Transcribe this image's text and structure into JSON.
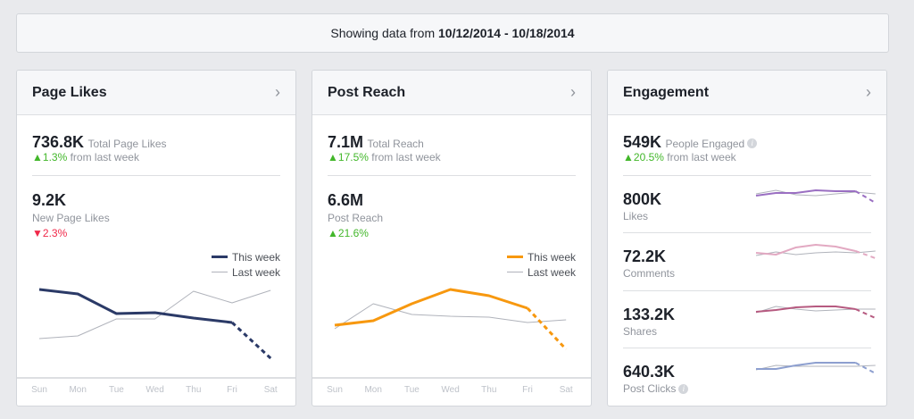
{
  "range": {
    "prefix": "Showing data from",
    "dates": "10/12/2014 - 10/18/2014"
  },
  "colors": {
    "page_likes": "#2b3a67",
    "post_reach": "#f7980f",
    "last_week": "#b0b3bb",
    "likes": "#9a6fc2",
    "comments": "#e2a9c2",
    "shares": "#b65a80",
    "post_clicks": "#8d9fcf",
    "up": "#42b72a",
    "down": "#f02849"
  },
  "days": [
    "Sun",
    "Mon",
    "Tue",
    "Wed",
    "Thu",
    "Fri",
    "Sat"
  ],
  "legend": {
    "this_week": "This week",
    "last_week": "Last week"
  },
  "page_likes": {
    "title": "Page Likes",
    "total": "736.8K",
    "total_label": "Total Page Likes",
    "total_delta": "1.3%",
    "total_delta_dir": "up",
    "delta_suffix": "from last week",
    "new": "9.2K",
    "new_label": "New Page Likes",
    "new_delta": "2.3%",
    "new_delta_dir": "down"
  },
  "post_reach": {
    "title": "Post Reach",
    "total": "7.1M",
    "total_label": "Total Reach",
    "total_delta": "17.5%",
    "total_delta_dir": "up",
    "delta_suffix": "from last week",
    "new": "6.6M",
    "new_label": "Post Reach",
    "new_delta": "21.6%",
    "new_delta_dir": "up"
  },
  "engagement": {
    "title": "Engagement",
    "total": "549K",
    "total_label": "People Engaged",
    "total_delta": "20.5%",
    "total_delta_dir": "up",
    "delta_suffix": "from last week",
    "metrics": [
      {
        "value": "800K",
        "label": "Likes"
      },
      {
        "value": "72.2K",
        "label": "Comments"
      },
      {
        "value": "133.2K",
        "label": "Shares"
      },
      {
        "value": "640.3K",
        "label": "Post Clicks"
      }
    ]
  },
  "chart_data": [
    {
      "type": "line",
      "title": "Page Likes",
      "categories": [
        "Sun",
        "Mon",
        "Tue",
        "Wed",
        "Thu",
        "Fri",
        "Sat"
      ],
      "series": [
        {
          "name": "This week",
          "values": [
            98,
            93,
            71,
            72,
            66,
            61,
            21
          ],
          "partial_last": true
        },
        {
          "name": "Last week",
          "values": [
            43,
            46,
            65,
            65,
            96,
            83,
            97
          ]
        }
      ]
    },
    {
      "type": "line",
      "title": "Post Reach",
      "categories": [
        "Sun",
        "Mon",
        "Tue",
        "Wed",
        "Thu",
        "Fri",
        "Sat"
      ],
      "series": [
        {
          "name": "This week",
          "values": [
            58,
            63,
            82,
            98,
            91,
            77,
            31
          ],
          "partial_last": true
        },
        {
          "name": "Last week",
          "values": [
            54,
            82,
            70,
            68,
            67,
            61,
            64
          ]
        }
      ]
    },
    {
      "type": "line",
      "title": "Likes",
      "series": [
        {
          "values": [
            12,
            15,
            15,
            18,
            17,
            17,
            4
          ]
        },
        {
          "values": [
            14,
            18,
            13,
            12,
            14,
            16,
            14
          ]
        }
      ]
    },
    {
      "type": "line",
      "title": "Comments",
      "series": [
        {
          "values": [
            14,
            12,
            20,
            23,
            21,
            16,
            8
          ]
        },
        {
          "values": [
            11,
            15,
            12,
            14,
            15,
            14,
            16
          ]
        }
      ]
    },
    {
      "type": "line",
      "title": "Shares",
      "series": [
        {
          "values": [
            12,
            14,
            17,
            18,
            18,
            15,
            5
          ]
        },
        {
          "values": [
            11,
            18,
            15,
            13,
            14,
            15,
            15
          ]
        }
      ]
    },
    {
      "type": "line",
      "title": "Post Clicks",
      "series": [
        {
          "values": [
            12,
            12,
            16,
            19,
            19,
            19,
            7
          ]
        },
        {
          "values": [
            11,
            16,
            15,
            15,
            15,
            15,
            16
          ]
        }
      ]
    }
  ]
}
